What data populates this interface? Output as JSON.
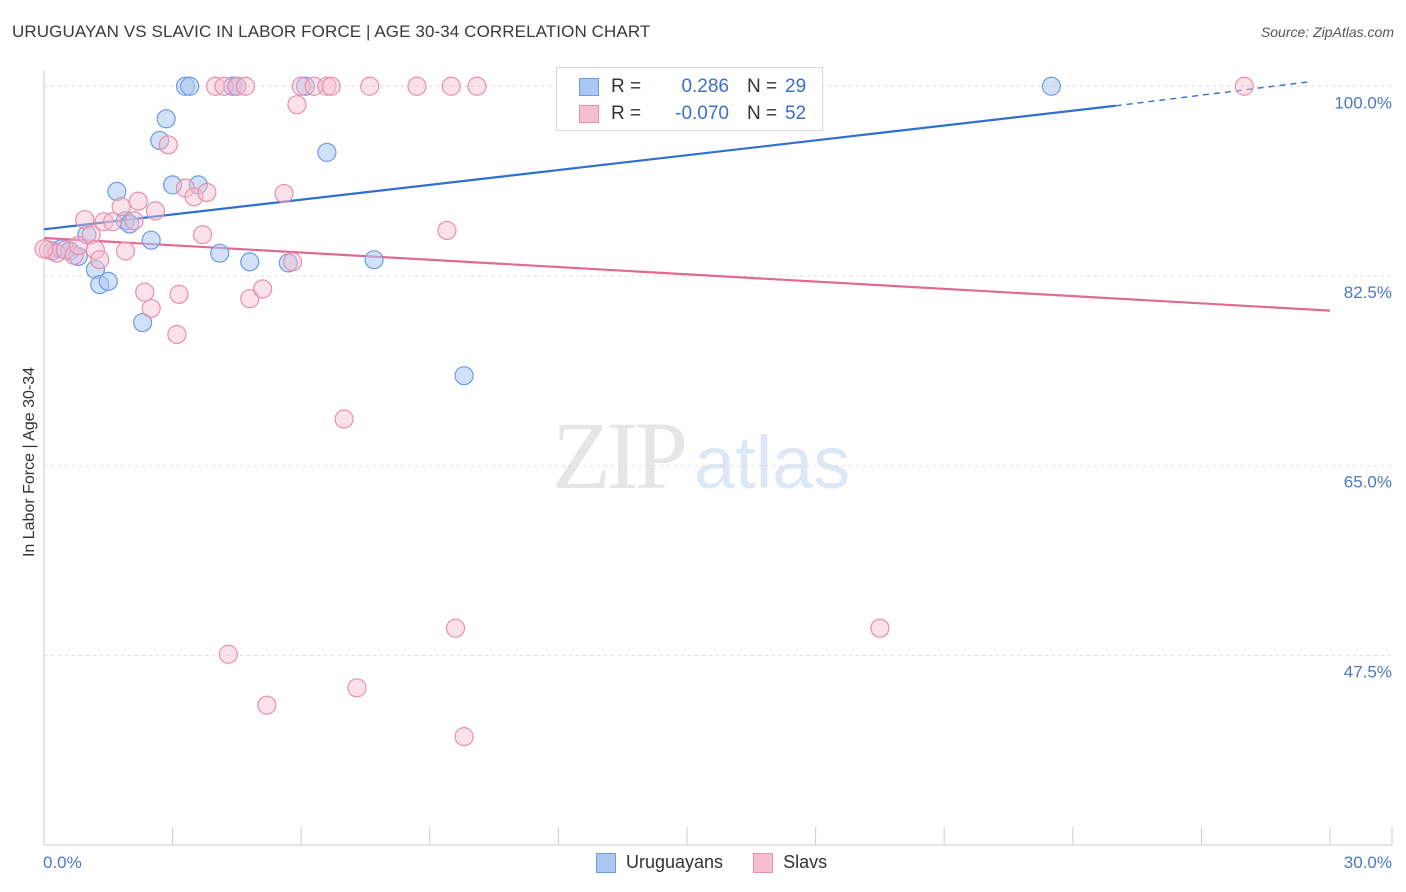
{
  "header": {
    "title": "URUGUAYAN VS SLAVIC IN LABOR FORCE | AGE 30-34 CORRELATION CHART",
    "source": "Source: ZipAtlas.com"
  },
  "watermark": {
    "zip": "ZIP",
    "atlas": "atlas"
  },
  "colors": {
    "blue_fill": "#a9c8f2",
    "blue_stroke": "#6f9be0",
    "blue_line": "#2f6fd0",
    "pink_fill": "#f6bfd0",
    "pink_stroke": "#e88fab",
    "pink_line": "#e06a94",
    "axis_text": "#4a78c4",
    "grid": "#dddddd"
  },
  "legend": {
    "rows": [
      {
        "r_label": "R =",
        "r_value": "0.286",
        "n_label": "N =",
        "n_value": "29"
      },
      {
        "r_label": "R =",
        "r_value": "-0.070",
        "n_label": "N =",
        "n_value": "52"
      }
    ]
  },
  "bottom_legend": [
    "Uruguayans",
    "Slavs"
  ],
  "chart_data": {
    "type": "scatter",
    "title": "URUGUAYAN VS SLAVIC IN LABOR FORCE | AGE 30-34 CORRELATION CHART",
    "xlabel": "",
    "ylabel": "In Labor Force | Age 30-34",
    "xlim": [
      0,
      30
    ],
    "ylim": [
      30,
      101.5
    ],
    "x_tick_labels": [
      "0.0%",
      "30.0%"
    ],
    "y_ticks": [
      47.5,
      65.0,
      82.5,
      100.0
    ],
    "y_tick_labels": [
      "47.5%",
      "65.0%",
      "82.5%",
      "100.0%"
    ],
    "grid": true,
    "series": [
      {
        "name": "Uruguayans",
        "r": 0.286,
        "n": 29,
        "points": [
          [
            0.2,
            84.8
          ],
          [
            0.4,
            85.0
          ],
          [
            0.6,
            84.8
          ],
          [
            0.8,
            84.3
          ],
          [
            1.0,
            86.3
          ],
          [
            1.2,
            83.1
          ],
          [
            1.3,
            81.7
          ],
          [
            1.5,
            82.0
          ],
          [
            1.7,
            90.3
          ],
          [
            1.9,
            87.6
          ],
          [
            2.0,
            87.3
          ],
          [
            2.3,
            78.2
          ],
          [
            2.5,
            85.8
          ],
          [
            2.7,
            95.0
          ],
          [
            2.85,
            97.0
          ],
          [
            3.0,
            90.9
          ],
          [
            3.3,
            100.0
          ],
          [
            3.4,
            100.0
          ],
          [
            3.6,
            90.9
          ],
          [
            4.1,
            84.6
          ],
          [
            4.4,
            100.0
          ],
          [
            4.5,
            100.0
          ],
          [
            4.8,
            83.8
          ],
          [
            5.7,
            83.7
          ],
          [
            6.1,
            100.0
          ],
          [
            6.6,
            93.9
          ],
          [
            7.7,
            84.0
          ],
          [
            9.8,
            73.3
          ],
          [
            23.5,
            100.0
          ]
        ],
        "trend": {
          "x0": 0,
          "y0": 86.8,
          "x1": 25,
          "y1": 98.2,
          "dash_to_x": 29.5,
          "dash_to_y": 100.4
        }
      },
      {
        "name": "Slavs",
        "r": -0.07,
        "n": 52,
        "points": [
          [
            0.1,
            84.9
          ],
          [
            0.3,
            84.6
          ],
          [
            0.5,
            84.9
          ],
          [
            0.7,
            84.4
          ],
          [
            0.8,
            85.3
          ],
          [
            0.95,
            87.7
          ],
          [
            1.1,
            86.3
          ],
          [
            1.2,
            84.9
          ],
          [
            1.3,
            84.0
          ],
          [
            1.4,
            87.5
          ],
          [
            1.6,
            87.5
          ],
          [
            1.8,
            88.9
          ],
          [
            1.9,
            84.8
          ],
          [
            2.1,
            87.6
          ],
          [
            2.2,
            89.4
          ],
          [
            2.35,
            81.0
          ],
          [
            2.5,
            79.5
          ],
          [
            2.6,
            88.5
          ],
          [
            2.9,
            94.6
          ],
          [
            3.1,
            77.1
          ],
          [
            3.15,
            80.8
          ],
          [
            3.3,
            90.6
          ],
          [
            3.5,
            89.8
          ],
          [
            3.7,
            86.3
          ],
          [
            3.8,
            90.2
          ],
          [
            4.0,
            100.0
          ],
          [
            4.2,
            100.0
          ],
          [
            4.3,
            47.6
          ],
          [
            4.5,
            100.0
          ],
          [
            4.7,
            100.0
          ],
          [
            4.8,
            80.4
          ],
          [
            5.1,
            81.3
          ],
          [
            5.2,
            42.9
          ],
          [
            5.6,
            90.1
          ],
          [
            5.8,
            83.8
          ],
          [
            5.9,
            98.3
          ],
          [
            6.0,
            100.0
          ],
          [
            6.3,
            100.0
          ],
          [
            6.6,
            100.0
          ],
          [
            6.7,
            100.0
          ],
          [
            7.0,
            69.3
          ],
          [
            7.3,
            44.5
          ],
          [
            7.6,
            100.0
          ],
          [
            8.7,
            100.0
          ],
          [
            9.4,
            86.7
          ],
          [
            9.5,
            100.0
          ],
          [
            9.6,
            50.0
          ],
          [
            9.8,
            40.0
          ],
          [
            10.1,
            100.0
          ],
          [
            19.5,
            50.0
          ],
          [
            28.0,
            100.0
          ],
          [
            0.0,
            85.0
          ]
        ],
        "trend": {
          "x0": 0,
          "y0": 86.0,
          "x1": 30,
          "y1": 79.3
        }
      }
    ]
  }
}
